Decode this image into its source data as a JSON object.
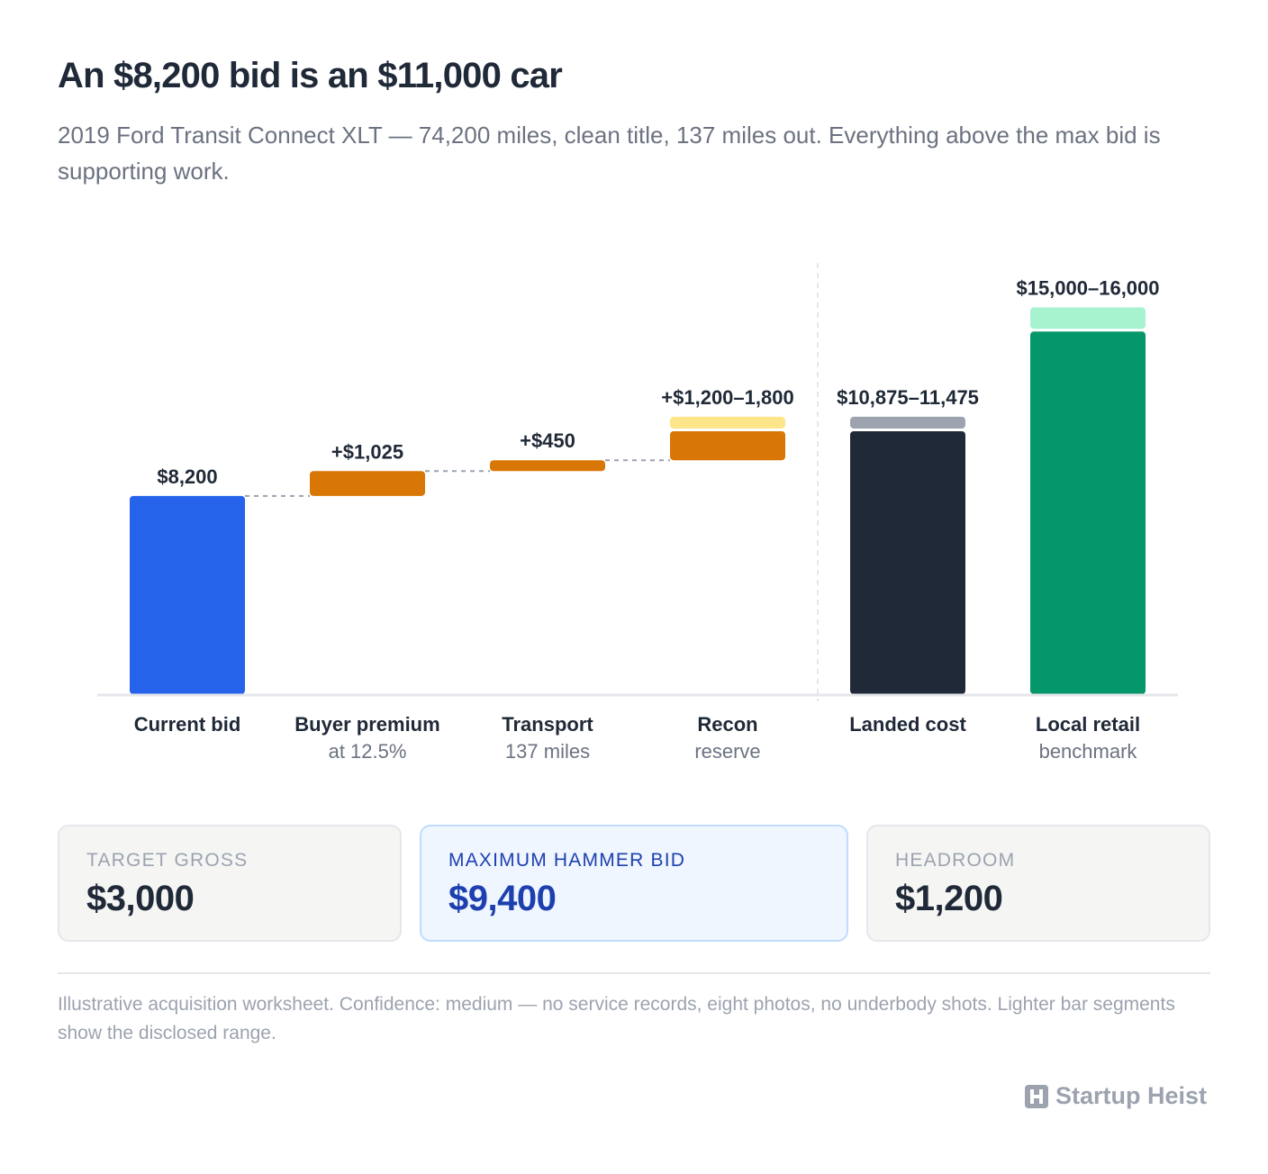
{
  "header": {
    "title": "An $8,200 bid is an $11,000 car",
    "subtitle": "2019 Ford Transit Connect XLT — 74,200 miles, clean title, 137 miles out. Everything above the max bid is supporting work."
  },
  "chart_data": {
    "type": "bar",
    "subtype": "waterfall",
    "categories": [
      {
        "label": "Current bid",
        "sublabel": ""
      },
      {
        "label": "Buyer premium",
        "sublabel": "at 12.5%"
      },
      {
        "label": "Transport",
        "sublabel": "137 miles"
      },
      {
        "label": "Recon",
        "sublabel": "reserve"
      },
      {
        "label": "Landed cost",
        "sublabel": ""
      },
      {
        "label": "Local retail",
        "sublabel": "benchmark"
      }
    ],
    "bars": [
      {
        "kind": "total",
        "base": 0,
        "low": 8200,
        "high": 8200,
        "value_label": "$8,200",
        "color": "#2563eb",
        "range_color": ""
      },
      {
        "kind": "step",
        "base": 8200,
        "low": 9225,
        "high": 9225,
        "value_label": "+$1,025",
        "color": "#d97706",
        "range_color": ""
      },
      {
        "kind": "step",
        "base": 9225,
        "low": 9675,
        "high": 9675,
        "value_label": "+$450",
        "color": "#d97706",
        "range_color": ""
      },
      {
        "kind": "step",
        "base": 9675,
        "low": 10875,
        "high": 11475,
        "value_label": "+$1,200–1,800",
        "color": "#d97706",
        "range_color": "#fde68a"
      },
      {
        "kind": "total",
        "base": 0,
        "low": 10875,
        "high": 11475,
        "value_label": "$10,875–11,475",
        "color": "#1f2937",
        "range_color": "#9ca3af"
      },
      {
        "kind": "total",
        "base": 0,
        "low": 15000,
        "high": 16000,
        "value_label": "$15,000–16,000",
        "color": "#059669",
        "range_color": "#a7f3d0"
      }
    ],
    "ylim": [
      0,
      16000
    ],
    "grid": false,
    "legend": "none",
    "separator_after_index": 3
  },
  "stats": [
    {
      "label": "TARGET GROSS",
      "value": "$3,000"
    },
    {
      "label": "MAXIMUM HAMMER BID",
      "value": "$9,400"
    },
    {
      "label": "HEADROOM",
      "value": "$1,200"
    }
  ],
  "footer": {
    "note": "Illustrative acquisition worksheet. Confidence: medium — no service records, eight photos, no underbody shots. Lighter bar segments show the disclosed range.",
    "brand": "Startup Heist"
  }
}
